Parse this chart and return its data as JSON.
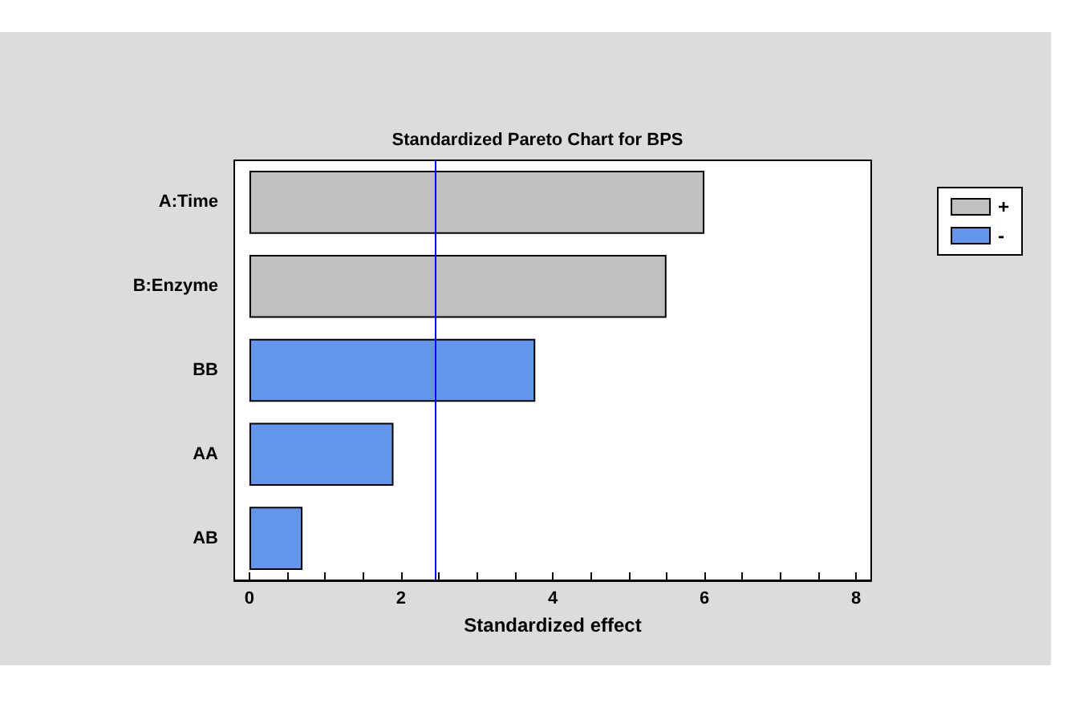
{
  "chart_data": {
    "type": "bar",
    "orientation": "horizontal",
    "stacked": true,
    "title": "Standardized Pareto Chart for BPS",
    "xlabel": "Standardized effect",
    "categories": [
      "A:Time",
      "B:Enzyme",
      "BB",
      "AA",
      "AB"
    ],
    "series": [
      {
        "name": "+",
        "color": "#c0c0c0",
        "values": [
          6.0,
          5.5,
          null,
          null,
          null
        ]
      },
      {
        "name": "-",
        "color": "#6495ed",
        "values": [
          null,
          null,
          3.77,
          1.9,
          0.7
        ]
      }
    ],
    "xlim": [
      -0.2,
      8.2
    ],
    "xticks": [
      0,
      {
        "value": 0.5,
        "label": null
      },
      2,
      {
        "value": 1,
        "label": null
      },
      {
        "value": 1.5,
        "label": null
      },
      {
        "value": 2.5,
        "label": null
      },
      {
        "value": 3,
        "label": null
      },
      {
        "value": 3.5,
        "label": null
      },
      4,
      {
        "value": 4.5,
        "label": null
      },
      {
        "value": 5,
        "label": null
      },
      {
        "value": 5.5,
        "label": null
      },
      6,
      {
        "value": 6.5,
        "label": null
      },
      {
        "value": 7,
        "label": null
      },
      {
        "value": 7.5,
        "label": null
      },
      8
    ],
    "ref_lines": [
      {
        "axis": "x",
        "value": 2.45,
        "color": "#0000ff"
      }
    ],
    "legend": "top right",
    "grid": false
  }
}
